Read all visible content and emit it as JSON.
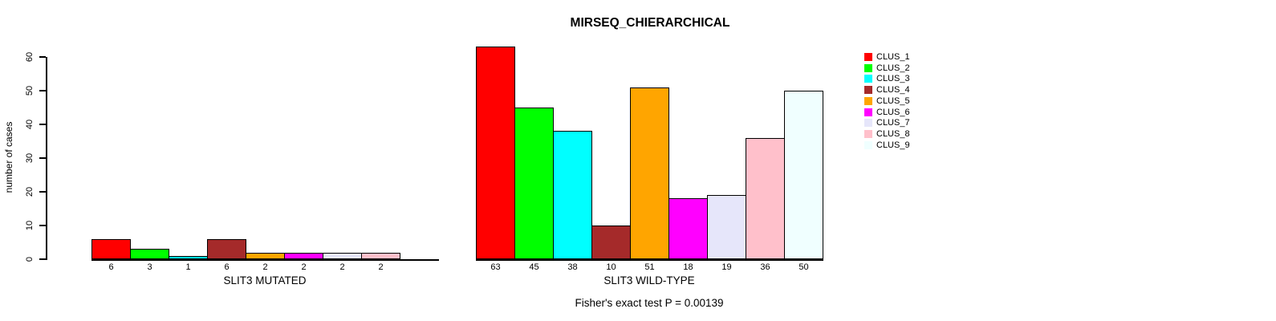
{
  "title": "MIRSEQ_CHIERARCHICAL",
  "footnote": "Fisher's exact test P = 0.00139",
  "y_axis": {
    "label": "number of cases",
    "ticks": [
      0,
      10,
      20,
      30,
      40,
      50,
      60
    ]
  },
  "legend": {
    "position": "right",
    "items": [
      {
        "label": "CLUS_1",
        "color": "#FF0000"
      },
      {
        "label": "CLUS_2",
        "color": "#00FF00"
      },
      {
        "label": "CLUS_3",
        "color": "#00FFFF"
      },
      {
        "label": "CLUS_4",
        "color": "#A52A2A"
      },
      {
        "label": "CLUS_5",
        "color": "#FFA500"
      },
      {
        "label": "CLUS_6",
        "color": "#FF00FF"
      },
      {
        "label": "CLUS_7",
        "color": "#E6E6FA"
      },
      {
        "label": "CLUS_8",
        "color": "#FFC0CB"
      },
      {
        "label": "CLUS_9",
        "color": "#F0FFFF"
      }
    ]
  },
  "chart_data": [
    {
      "type": "bar",
      "xlabel": "SLIT3 MUTATED",
      "ylabel": "number of cases",
      "categories": [
        "CLUS_1",
        "CLUS_2",
        "CLUS_3",
        "CLUS_4",
        "CLUS_5",
        "CLUS_6",
        "CLUS_7",
        "CLUS_8",
        "CLUS_9"
      ],
      "values": [
        6,
        3,
        1,
        6,
        2,
        2,
        2,
        2,
        0
      ],
      "bar_labels": [
        "6",
        "3",
        "1",
        "6",
        "2",
        "2",
        "2",
        "2",
        ""
      ],
      "bar_colors": [
        "#FF0000",
        "#00FF00",
        "#00FFFF",
        "#A52A2A",
        "#FFA500",
        "#FF00FF",
        "#E6E6FA",
        "#FFC0CB",
        "#F0FFFF"
      ],
      "ylim": [
        0,
        60
      ],
      "yticks": [
        0,
        10,
        20,
        30,
        40,
        50,
        60
      ],
      "grid": false,
      "legend_position": "right"
    },
    {
      "type": "bar",
      "xlabel": "SLIT3 WILD-TYPE",
      "ylabel": "number of cases",
      "categories": [
        "CLUS_1",
        "CLUS_2",
        "CLUS_3",
        "CLUS_4",
        "CLUS_5",
        "CLUS_6",
        "CLUS_7",
        "CLUS_8",
        "CLUS_9"
      ],
      "values": [
        63,
        45,
        38,
        10,
        51,
        18,
        19,
        36,
        50
      ],
      "bar_labels": [
        "63",
        "45",
        "38",
        "10",
        "51",
        "18",
        "19",
        "36",
        "50"
      ],
      "bar_colors": [
        "#FF0000",
        "#00FF00",
        "#00FFFF",
        "#A52A2A",
        "#FFA500",
        "#FF00FF",
        "#E6E6FA",
        "#FFC0CB",
        "#F0FFFF"
      ],
      "ylim": [
        0,
        60
      ],
      "yticks": [
        0,
        10,
        20,
        30,
        40,
        50,
        60
      ],
      "grid": false,
      "legend_position": "right"
    }
  ]
}
